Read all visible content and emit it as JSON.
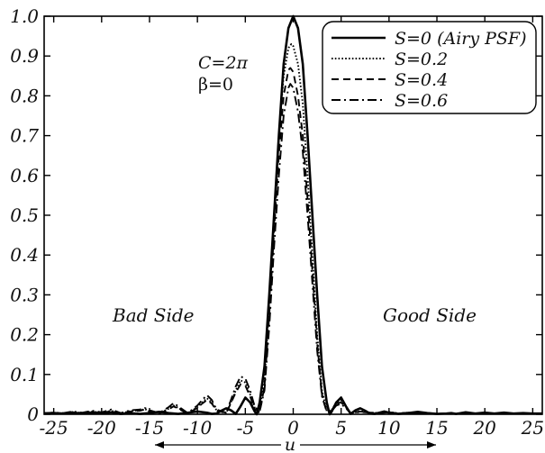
{
  "chart_data": {
    "type": "line",
    "xlabel": "u",
    "ylabel": "",
    "xlim": [
      -26,
      26
    ],
    "ylim": [
      0,
      1.0
    ],
    "xticks": [
      -25,
      -20,
      -15,
      -10,
      -5,
      0,
      5,
      10,
      15,
      20,
      25
    ],
    "xtick_labels": [
      "-25",
      "-20",
      "-15",
      "-10",
      "-5",
      "0",
      "5",
      "10",
      "15",
      "20",
      "25"
    ],
    "yticks": [
      0,
      0.1,
      0.2,
      0.3,
      0.4,
      0.5,
      0.6,
      0.7,
      0.8,
      0.9,
      1.0
    ],
    "ytick_labels": [
      "0",
      "0.1",
      "0.2",
      "0.3",
      "0.4",
      "0.5",
      "0.6",
      "0.7",
      "0.8",
      "0.9",
      "1.0"
    ],
    "grid": false,
    "legend_position": "top-right",
    "annotations": {
      "c_label": "C=2π",
      "beta_label": "β=0",
      "bad_side": "Bad Side",
      "good_side": "Good Side"
    },
    "series": [
      {
        "name": "S=0 (Airy PSF)",
        "dash": "solid",
        "x": [
          -26,
          -25,
          -24,
          -23,
          -22,
          -21,
          -20,
          -19,
          -18,
          -17,
          -16.5,
          -16,
          -15,
          -14,
          -13,
          -12,
          -11,
          -10,
          -9,
          -8.5,
          -8,
          -7.5,
          -7,
          -6.5,
          -6,
          -5.5,
          -5,
          -4.5,
          -4,
          -3.8,
          -3.5,
          -3,
          -2.5,
          -2,
          -1.5,
          -1,
          -0.5,
          0,
          0.5,
          1,
          1.5,
          2,
          2.5,
          3,
          3.5,
          3.8,
          4,
          4.5,
          5,
          5.5,
          6,
          6.5,
          7,
          7.5,
          8,
          8.5,
          9,
          9.5,
          10,
          11,
          12,
          13,
          14,
          15,
          16,
          16.5,
          17,
          18,
          19,
          20,
          21,
          22,
          23,
          24,
          25,
          26
        ],
        "y": [
          0.002,
          0.003,
          0.002,
          0.004,
          0.002,
          0.004,
          0.002,
          0.005,
          0.001,
          0.003,
          0.002,
          0.001,
          0.003,
          0.006,
          0.003,
          0.001,
          0.004,
          0.007,
          0.004,
          0.001,
          0.002,
          0.009,
          0.015,
          0.01,
          0.001,
          0.02,
          0.042,
          0.03,
          0.006,
          0.0,
          0.03,
          0.12,
          0.3,
          0.5,
          0.7,
          0.88,
          0.97,
          1.0,
          0.97,
          0.88,
          0.7,
          0.5,
          0.3,
          0.12,
          0.03,
          0.0,
          0.006,
          0.03,
          0.042,
          0.02,
          0.001,
          0.01,
          0.015,
          0.009,
          0.002,
          0.001,
          0.004,
          0.007,
          0.004,
          0.001,
          0.003,
          0.006,
          0.003,
          0.001,
          0.002,
          0.003,
          0.001,
          0.005,
          0.002,
          0.004,
          0.002,
          0.004,
          0.002,
          0.003,
          0.002,
          0.002
        ]
      },
      {
        "name": "S=0.2",
        "dash": "dotted",
        "x": [
          -26,
          -25,
          -24,
          -23,
          -22,
          -21,
          -20,
          -19,
          -18,
          -17,
          -16,
          -15.5,
          -15,
          -14,
          -13,
          -12.5,
          -12,
          -11,
          -10,
          -9.5,
          -9,
          -8.5,
          -8,
          -7,
          -6.5,
          -6,
          -5.5,
          -5,
          -4.5,
          -4,
          -3.6,
          -3,
          -2.5,
          -2,
          -1.5,
          -1,
          -0.5,
          -0.2,
          0,
          0.5,
          1,
          1.5,
          2,
          2.5,
          3,
          3.5,
          4,
          4.5,
          5,
          5.5,
          6,
          7,
          8,
          9,
          10,
          11,
          12,
          13,
          14,
          15,
          16,
          17,
          18,
          19,
          20,
          21,
          22,
          23,
          24,
          25,
          26
        ],
        "y": [
          0.003,
          0.004,
          0.002,
          0.006,
          0.003,
          0.007,
          0.004,
          0.009,
          0.002,
          0.008,
          0.01,
          0.013,
          0.008,
          0.002,
          0.014,
          0.022,
          0.016,
          0.002,
          0.018,
          0.03,
          0.04,
          0.03,
          0.01,
          0.003,
          0.03,
          0.06,
          0.085,
          0.08,
          0.05,
          0.015,
          0.005,
          0.08,
          0.28,
          0.5,
          0.7,
          0.85,
          0.92,
          0.93,
          0.925,
          0.88,
          0.78,
          0.6,
          0.4,
          0.2,
          0.06,
          0.008,
          0.01,
          0.03,
          0.035,
          0.02,
          0.003,
          0.008,
          0.004,
          0.003,
          0.006,
          0.002,
          0.004,
          0.002,
          0.003,
          0.001,
          0.002,
          0.001,
          0.002,
          0.001,
          0.002,
          0.001,
          0.001,
          0.001,
          0.001,
          0.001,
          0.001
        ]
      },
      {
        "name": "S=0.4",
        "dash": "dashed",
        "x": [
          -26,
          -25,
          -24,
          -23,
          -22,
          -21,
          -20,
          -19,
          -18,
          -17,
          -16,
          -15.5,
          -15,
          -14,
          -13,
          -12.5,
          -12,
          -11,
          -10,
          -9.5,
          -9,
          -8.5,
          -8,
          -7,
          -6.5,
          -6,
          -5.5,
          -5,
          -4.5,
          -4,
          -3.5,
          -3,
          -2.5,
          -2,
          -1.5,
          -1,
          -0.5,
          -0.3,
          0,
          0.5,
          1,
          1.5,
          2,
          2.5,
          3,
          3.5,
          4,
          4.5,
          5,
          5.5,
          6,
          7,
          8,
          9,
          10,
          11,
          12,
          13,
          14,
          15,
          16,
          17,
          18,
          19,
          20,
          21,
          22,
          23,
          24,
          25,
          26
        ],
        "y": [
          0.002,
          0.003,
          0.002,
          0.005,
          0.003,
          0.006,
          0.003,
          0.008,
          0.002,
          0.007,
          0.009,
          0.012,
          0.007,
          0.002,
          0.012,
          0.02,
          0.014,
          0.002,
          0.016,
          0.027,
          0.036,
          0.027,
          0.009,
          0.003,
          0.028,
          0.055,
          0.075,
          0.072,
          0.045,
          0.012,
          0.006,
          0.07,
          0.25,
          0.46,
          0.65,
          0.8,
          0.865,
          0.87,
          0.86,
          0.8,
          0.7,
          0.54,
          0.36,
          0.18,
          0.05,
          0.007,
          0.009,
          0.026,
          0.03,
          0.017,
          0.003,
          0.007,
          0.004,
          0.003,
          0.005,
          0.002,
          0.004,
          0.002,
          0.003,
          0.001,
          0.002,
          0.001,
          0.002,
          0.001,
          0.002,
          0.001,
          0.001,
          0.001,
          0.001,
          0.001,
          0.001
        ]
      },
      {
        "name": "S=0.6",
        "dash": "dashdot",
        "x": [
          -26,
          -25,
          -24,
          -23,
          -22,
          -21,
          -20,
          -19,
          -18,
          -17,
          -16,
          -15.5,
          -15,
          -14,
          -13,
          -12.5,
          -12,
          -11,
          -10,
          -9.5,
          -9,
          -8.5,
          -8,
          -7,
          -6.5,
          -6,
          -5.5,
          -5,
          -4.5,
          -4,
          -3.5,
          -3,
          -2.5,
          -2,
          -1.5,
          -1,
          -0.5,
          -0.3,
          0,
          0.5,
          1,
          1.5,
          2,
          2.5,
          3,
          3.5,
          4,
          4.5,
          5,
          5.5,
          6,
          7,
          8,
          9,
          10,
          11,
          12,
          13,
          14,
          15,
          16,
          17,
          18,
          19,
          20,
          21,
          22,
          23,
          24,
          25,
          26
        ],
        "y": [
          0.003,
          0.004,
          0.003,
          0.007,
          0.004,
          0.009,
          0.005,
          0.012,
          0.003,
          0.01,
          0.012,
          0.016,
          0.01,
          0.003,
          0.018,
          0.028,
          0.02,
          0.003,
          0.022,
          0.036,
          0.048,
          0.036,
          0.012,
          0.004,
          0.036,
          0.07,
          0.095,
          0.09,
          0.06,
          0.018,
          0.008,
          0.06,
          0.22,
          0.42,
          0.6,
          0.75,
          0.82,
          0.83,
          0.82,
          0.76,
          0.66,
          0.5,
          0.33,
          0.16,
          0.045,
          0.006,
          0.008,
          0.022,
          0.026,
          0.015,
          0.003,
          0.006,
          0.004,
          0.003,
          0.005,
          0.002,
          0.004,
          0.002,
          0.003,
          0.001,
          0.002,
          0.001,
          0.002,
          0.001,
          0.002,
          0.001,
          0.001,
          0.001,
          0.001,
          0.001,
          0.001
        ]
      }
    ]
  }
}
